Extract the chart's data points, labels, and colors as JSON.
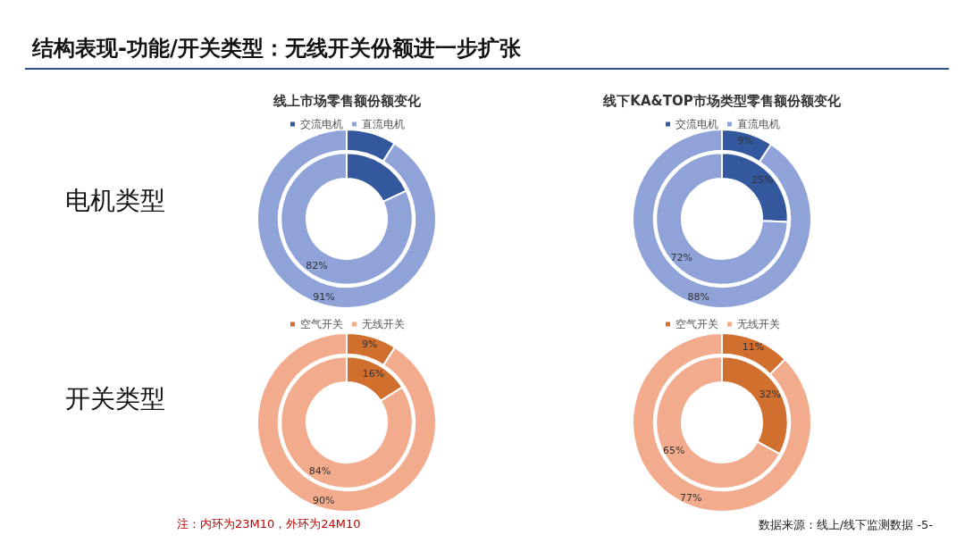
{
  "chart_data": [
    {
      "type": "donut",
      "title": "线上市场零售额份额变化",
      "categories": [
        "交流电机",
        "直流电机"
      ],
      "colors": [
        "#34589e",
        "#8fa3d8"
      ],
      "legend": "top",
      "annotations": [
        "结构表现-功能/开关类型：无线开关份额进一步扩张",
        "电机类型",
        "注：内环为23M10，外环为24M10"
      ],
      "series": [
        {
          "values": [
            18,
            82
          ],
          "value_labels": [
            null,
            "82%"
          ]
        },
        {
          "values": [
            9,
            91
          ],
          "value_labels": [
            null,
            "91%"
          ]
        }
      ]
    },
    {
      "type": "donut",
      "title": "线下KA&TOP市场类型零售额份额变化",
      "categories": [
        "交流电机",
        "直流电机"
      ],
      "colors": [
        "#34589e",
        "#8fa3d8"
      ],
      "legend": "top",
      "series": [
        {
          "values": [
            25,
            72
          ],
          "value_labels": [
            "25%",
            "72%"
          ]
        },
        {
          "values": [
            9,
            88
          ],
          "value_labels": [
            "9%",
            "88%"
          ]
        }
      ]
    },
    {
      "type": "donut",
      "categories": [
        "空气开关",
        "无线开关"
      ],
      "colors": [
        "#d16f2e",
        "#f2ab8c"
      ],
      "legend": "top",
      "annotations": [
        "开关类型",
        "数据来源：线上/线下监测数据 -5-"
      ],
      "series": [
        {
          "values": [
            16,
            84
          ],
          "value_labels": [
            "16%",
            "84%"
          ]
        },
        {
          "values": [
            9,
            90
          ],
          "value_labels": [
            "9%",
            "90%"
          ]
        }
      ]
    },
    {
      "type": "donut",
      "categories": [
        "空气开关",
        "无线开关"
      ],
      "colors": [
        "#d16f2e",
        "#f2ab8c"
      ],
      "legend": "top",
      "series": [
        {
          "values": [
            32,
            65
          ],
          "value_labels": [
            "32%",
            "65%"
          ]
        },
        {
          "values": [
            11,
            77
          ],
          "value_labels": [
            "11%",
            "77%"
          ]
        }
      ]
    }
  ]
}
